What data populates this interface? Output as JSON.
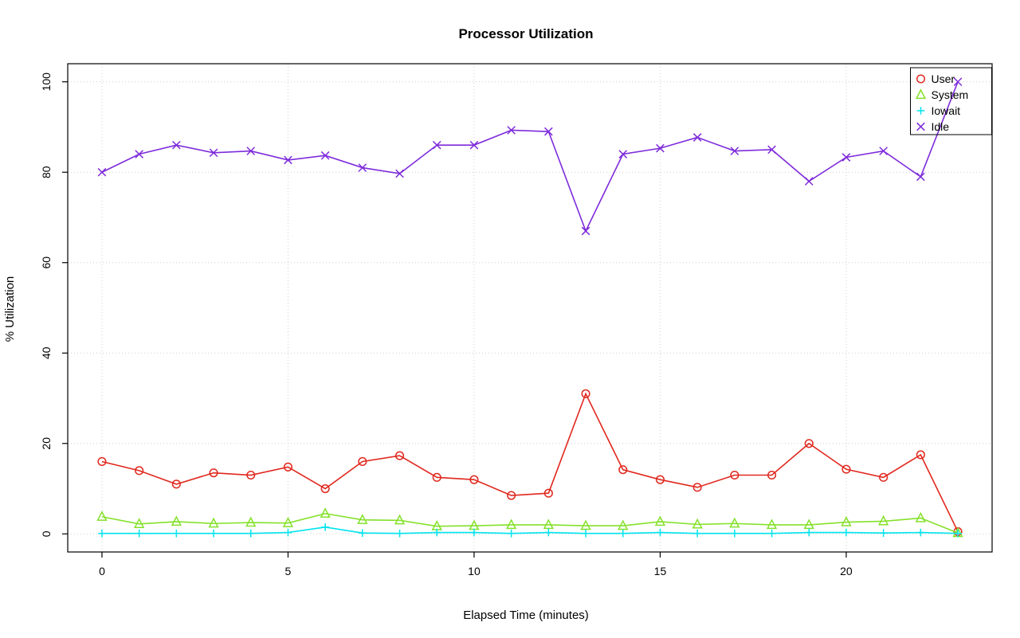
{
  "chart_data": {
    "type": "line",
    "title": "Processor Utilization",
    "xlabel": "Elapsed Time (minutes)",
    "ylabel": "% Utilization",
    "xlim": [
      0,
      23
    ],
    "ylim": [
      0,
      100
    ],
    "xticks": [
      0,
      5,
      10,
      15,
      20
    ],
    "yticks": [
      0,
      20,
      40,
      60,
      80,
      100
    ],
    "grid": true,
    "legend_position": "top-right",
    "x": [
      0,
      1,
      2,
      3,
      4,
      5,
      6,
      7,
      8,
      9,
      10,
      11,
      12,
      13,
      14,
      15,
      16,
      17,
      18,
      19,
      20,
      21,
      22,
      23
    ],
    "series": [
      {
        "name": "User",
        "marker": "circle",
        "color": "#e0281e",
        "values": [
          16,
          14,
          11,
          13.5,
          13,
          14.8,
          10,
          16,
          17.3,
          12.5,
          12,
          8.5,
          9,
          31,
          14.2,
          12,
          10.3,
          13,
          13,
          20,
          14.3,
          12.5,
          17.5,
          0.5
        ]
      },
      {
        "name": "System",
        "marker": "triangle",
        "color": "#84e12a",
        "values": [
          3.8,
          2.2,
          2.7,
          2.3,
          2.5,
          2.4,
          4.5,
          3.1,
          3,
          1.7,
          1.8,
          2,
          2,
          1.8,
          1.8,
          2.7,
          2.1,
          2.3,
          2,
          2,
          2.6,
          2.8,
          3.5,
          0.2
        ]
      },
      {
        "name": "Iowait",
        "marker": "plus",
        "color": "#00e4ee",
        "values": [
          0.1,
          0.1,
          0.1,
          0.1,
          0.1,
          0.3,
          1.5,
          0.2,
          0.1,
          0.3,
          0.3,
          0.1,
          0.3,
          0.1,
          0.1,
          0.3,
          0.1,
          0.1,
          0.1,
          0.3,
          0.3,
          0.2,
          0.3,
          0.1
        ]
      },
      {
        "name": "Idle",
        "marker": "x",
        "color": "#7e2bdb",
        "values": [
          80,
          84,
          86,
          84.3,
          84.7,
          82.7,
          83.7,
          81,
          79.7,
          86,
          86,
          89.3,
          89,
          67,
          84,
          85.3,
          87.7,
          84.7,
          85,
          78,
          83.3,
          84.7,
          79,
          100
        ]
      }
    ],
    "style": {
      "grid_color": "#cfcfcf",
      "box_color": "#000000",
      "background": "#ffffff"
    }
  }
}
